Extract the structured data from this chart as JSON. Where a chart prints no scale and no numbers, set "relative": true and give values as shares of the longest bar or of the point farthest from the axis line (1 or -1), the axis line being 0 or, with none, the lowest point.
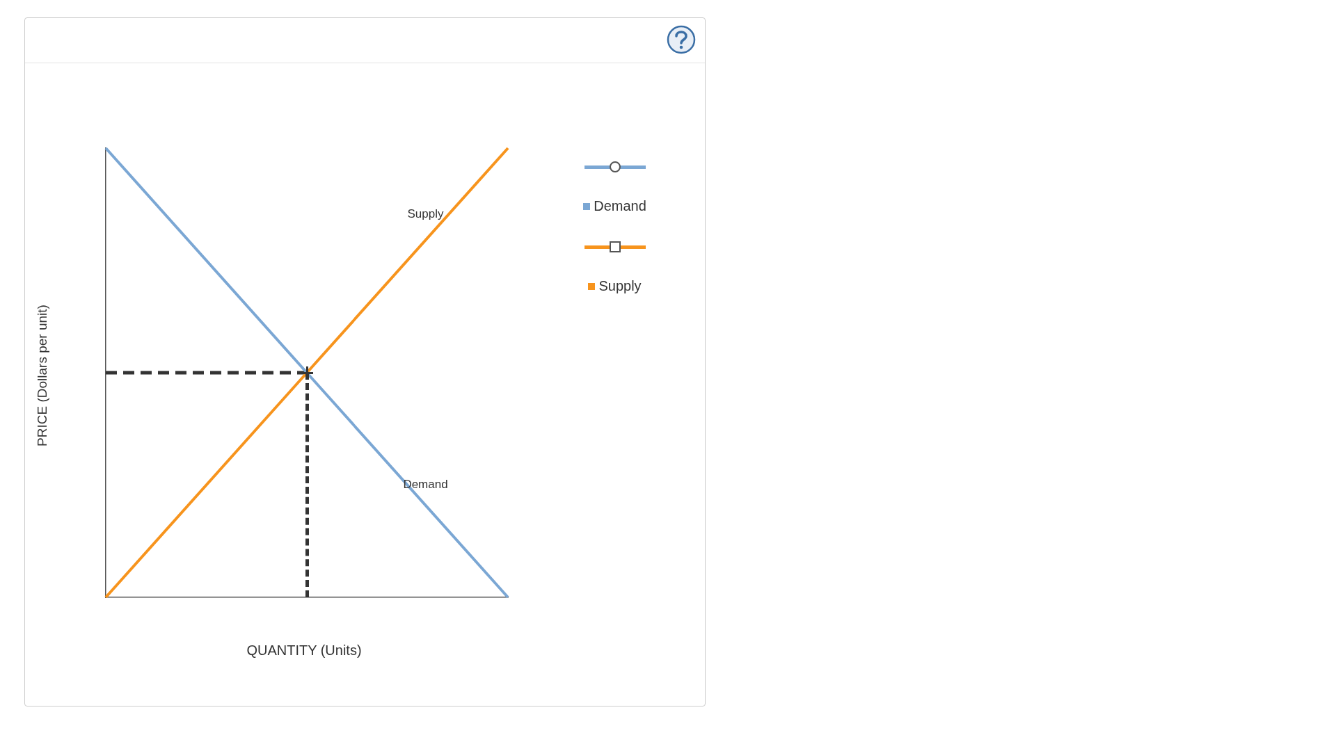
{
  "chart_data": {
    "type": "line",
    "xlabel": "QUANTITY (Units)",
    "ylabel": "PRICE (Dollars per unit)",
    "relative": true,
    "tick_labels": false,
    "grid": false,
    "legend": "right",
    "marker": "none",
    "line_style": "solid",
    "categories": [
      null,
      null,
      null
    ],
    "series": [
      {
        "name": "Demand",
        "color": "#7ba7d4",
        "values": [
          1,
          0.5,
          0
        ]
      },
      {
        "name": "Supply",
        "color": "#f7941d",
        "values": [
          0,
          0.5,
          1
        ]
      },
      {
        "color": "#333333",
        "values": [
          0.5,
          0.5,
          null
        ],
        "line_style": "dashed"
      }
    ],
    "annotations": [
      "Supply",
      "Demand"
    ]
  }
}
